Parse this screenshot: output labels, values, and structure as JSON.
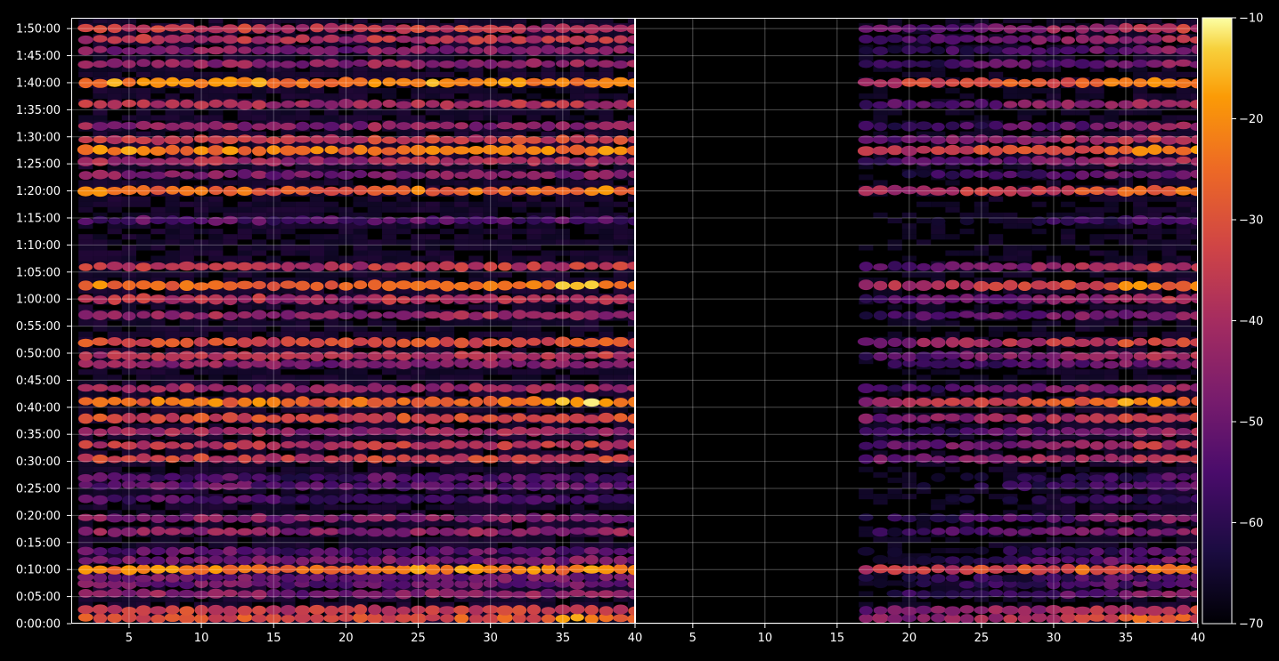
{
  "chart_data": {
    "type": "heatmap",
    "colormap": "inferno",
    "background": "#000000",
    "grid": true,
    "panels": [
      {
        "name": "",
        "xlim": [
          1,
          40
        ],
        "x_ticks": [
          "5",
          "10",
          "15",
          "20",
          "25",
          "30",
          "35",
          "40"
        ],
        "x_tick_values": [
          5,
          10,
          15,
          20,
          25,
          30,
          35,
          40
        ],
        "x_coverage": [
          2,
          40
        ]
      },
      {
        "name": "",
        "xlim": [
          1,
          40
        ],
        "x_ticks": [
          "5",
          "10",
          "15",
          "20",
          "25",
          "30",
          "35",
          "40"
        ],
        "x_tick_values": [
          5,
          10,
          15,
          20,
          25,
          30,
          35,
          40
        ],
        "x_coverage": [
          17,
          40
        ]
      }
    ],
    "y_axis": {
      "unit": "seconds",
      "ylim": [
        0,
        6720
      ],
      "ticks": [
        "0:00:00",
        "0:05:00",
        "0:10:00",
        "0:15:00",
        "0:20:00",
        "0:25:00",
        "0:30:00",
        "0:35:00",
        "0:40:00",
        "0:45:00",
        "0:50:00",
        "0:55:00",
        "1:00:00",
        "1:05:00",
        "1:10:00",
        "1:15:00",
        "1:20:00",
        "1:25:00",
        "1:30:00",
        "1:35:00",
        "1:40:00",
        "1:45:00",
        "1:50:00"
      ],
      "tick_values": [
        0,
        300,
        600,
        900,
        1200,
        1500,
        1800,
        2100,
        2400,
        2700,
        3000,
        3300,
        3600,
        3900,
        4200,
        4500,
        4800,
        5100,
        5400,
        5700,
        6000,
        6300,
        6600
      ]
    },
    "colorbar": {
      "range": [
        -70,
        -10
      ],
      "ticks": [
        "−10",
        "−20",
        "−30",
        "−40",
        "−50",
        "−60",
        "−70"
      ],
      "tick_values": [
        -10,
        -20,
        -30,
        -40,
        -50,
        -60,
        -70
      ]
    },
    "bands": [
      {
        "t": 60,
        "level": -30,
        "width": 1.0
      },
      {
        "t": 150,
        "level": -34,
        "width": 1.0
      },
      {
        "t": 330,
        "level": -45,
        "width": 0.9
      },
      {
        "t": 440,
        "level": -50,
        "width": 0.9
      },
      {
        "t": 510,
        "level": -50,
        "width": 0.9
      },
      {
        "t": 600,
        "level": -22,
        "width": 1.0
      },
      {
        "t": 700,
        "level": -48,
        "width": 0.9
      },
      {
        "t": 800,
        "level": -52,
        "width": 0.9
      },
      {
        "t": 1020,
        "level": -44,
        "width": 0.9
      },
      {
        "t": 1170,
        "level": -46,
        "width": 0.9
      },
      {
        "t": 1380,
        "level": -55,
        "width": 0.9
      },
      {
        "t": 1530,
        "level": -52,
        "width": 0.9
      },
      {
        "t": 1620,
        "level": -54,
        "width": 0.9
      },
      {
        "t": 1830,
        "level": -34,
        "width": 0.9
      },
      {
        "t": 1980,
        "level": -36,
        "width": 0.9
      },
      {
        "t": 2130,
        "level": -42,
        "width": 0.9
      },
      {
        "t": 2280,
        "level": -32,
        "width": 1.0
      },
      {
        "t": 2460,
        "level": -24,
        "width": 1.0
      },
      {
        "t": 2610,
        "level": -42,
        "width": 0.9
      },
      {
        "t": 2880,
        "level": -44,
        "width": 0.9
      },
      {
        "t": 2970,
        "level": -38,
        "width": 0.9
      },
      {
        "t": 3120,
        "level": -30,
        "width": 1.0
      },
      {
        "t": 3420,
        "level": -42,
        "width": 0.9
      },
      {
        "t": 3600,
        "level": -38,
        "width": 1.0
      },
      {
        "t": 3750,
        "level": -24,
        "width": 1.0
      },
      {
        "t": 3960,
        "level": -36,
        "width": 0.9
      },
      {
        "t": 4470,
        "level": -54,
        "width": 0.9
      },
      {
        "t": 4800,
        "level": -24,
        "width": 1.0
      },
      {
        "t": 4980,
        "level": -46,
        "width": 0.9
      },
      {
        "t": 5130,
        "level": -40,
        "width": 0.9
      },
      {
        "t": 5250,
        "level": -22,
        "width": 1.0
      },
      {
        "t": 5370,
        "level": -34,
        "width": 0.9
      },
      {
        "t": 5520,
        "level": -44,
        "width": 0.9
      },
      {
        "t": 5760,
        "level": -38,
        "width": 0.9
      },
      {
        "t": 6000,
        "level": -20,
        "width": 1.0
      },
      {
        "t": 6210,
        "level": -44,
        "width": 0.9
      },
      {
        "t": 6360,
        "level": -46,
        "width": 0.9
      },
      {
        "t": 6480,
        "level": -38,
        "width": 0.9
      },
      {
        "t": 6600,
        "level": -36,
        "width": 0.9
      }
    ]
  }
}
